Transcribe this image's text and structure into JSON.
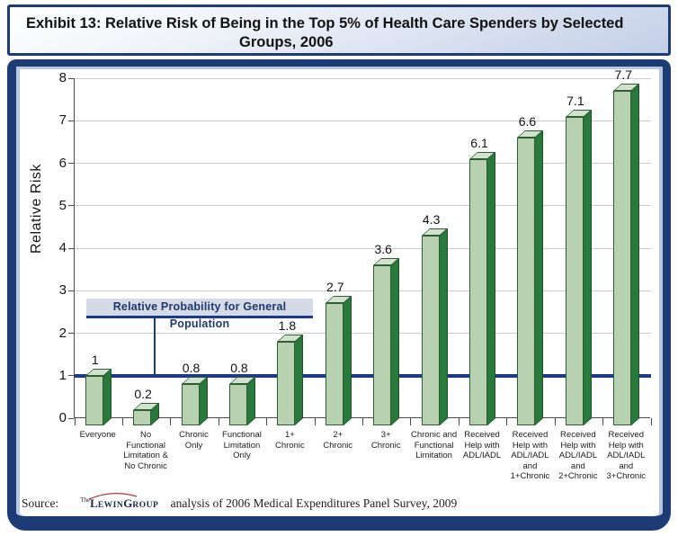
{
  "header": {
    "title": "Exhibit 13: Relative Risk of Being in the Top 5% of Health Care Spenders by Selected Groups, 2006",
    "title_lines": [
      "Exhibit 13: Relative Risk of Being in the Top 5% of Health Care Spenders by Selected",
      "Groups, 2006"
    ]
  },
  "chart_data": {
    "type": "bar",
    "title": "Exhibit 13: Relative Risk of Being in the Top 5% of Health Care Spenders by Selected Groups, 2006",
    "xlabel": "",
    "ylabel": "Relative Risk",
    "ylim": [
      0,
      8
    ],
    "yticks": [
      0,
      1,
      2,
      3,
      4,
      5,
      6,
      7,
      8
    ],
    "grid": true,
    "legend": false,
    "categories": [
      "Everyone",
      "No Functional Limitation & No Chronic",
      "Chronic Only",
      "Functional Limitation Only",
      "1+ Chronic",
      "2+ Chronic",
      "3+ Chronic",
      "Chronic and Functional Limitation",
      "Received Help with ADL/IADL",
      "Received Help with ADL/IADL and 1+Chronic",
      "Received Help with ADL/IADL and 2+Chronic",
      "Received Help with ADL/IADL and 3+Chronic"
    ],
    "category_lines": [
      [
        "Everyone"
      ],
      [
        "No",
        "Functional",
        "Limitation &",
        "No Chronic"
      ],
      [
        "Chronic",
        "Only"
      ],
      [
        "Functional",
        "Limitation",
        "Only"
      ],
      [
        "1+",
        "Chronic"
      ],
      [
        "2+",
        "Chronic"
      ],
      [
        "3+",
        "Chronic"
      ],
      [
        "Chronic and",
        "Functional",
        "Limitation"
      ],
      [
        "Received",
        "Help with",
        "ADL/IADL"
      ],
      [
        "Received",
        "Help with",
        "ADL/IADL",
        "and",
        "1+Chronic"
      ],
      [
        "Received",
        "Help with",
        "ADL/IADL",
        "and",
        "2+Chronic"
      ],
      [
        "Received",
        "Help with",
        "ADL/IADL",
        "and",
        "3+Chronic"
      ]
    ],
    "values": [
      1,
      0.2,
      0.8,
      0.8,
      1.8,
      2.7,
      3.6,
      4.3,
      6.1,
      6.6,
      7.1,
      7.7
    ],
    "value_labels": [
      "1",
      "0.2",
      "0.8",
      "0.8",
      "1.8",
      "2.7",
      "3.6",
      "4.3",
      "6.1",
      "6.6",
      "7.1",
      "7.7"
    ],
    "reference_line": {
      "value": 1,
      "label": "Relative Probability for General Population"
    },
    "colors": {
      "bar_front": "#b7d1b1",
      "bar_side": "#28793b",
      "bar_top": "#d2e2cd",
      "bar_outline": "#2b5e33",
      "reference": "#1b3a8c",
      "grid": "#c8ccd0",
      "axis": "#4a4a4a"
    }
  },
  "annotation": {
    "text": "Relative Probability for General Population"
  },
  "source": {
    "prefix": "Source:",
    "logo_sup": "The",
    "logo_cap1": "L",
    "logo_small1": "EWIN",
    "logo_cap2": "G",
    "logo_small2": "ROUP",
    "text": "analysis of 2006 Medical Expenditures Panel Survey, 2009"
  },
  "frame": {
    "border_color": "#1d3b74",
    "inner_band_color": "#b9c6e2",
    "title_gradient_bottom": "#c3cfe8"
  }
}
